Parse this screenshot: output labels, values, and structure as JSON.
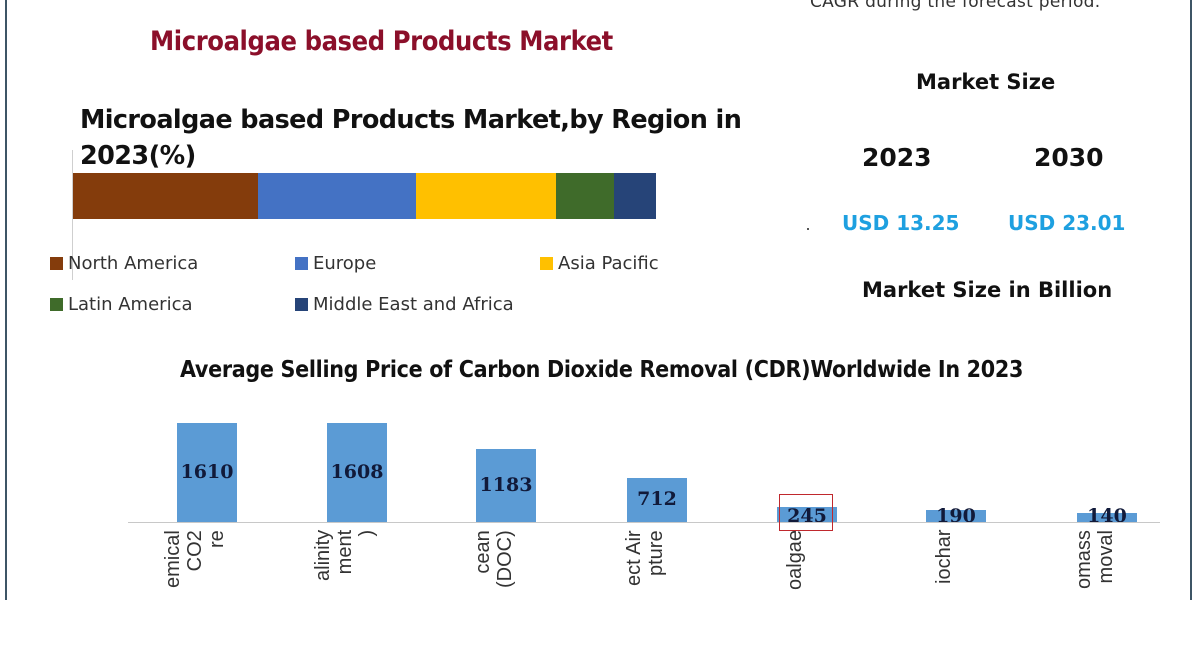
{
  "header": {
    "cagr_note": "CAGR during the forecast period.",
    "title": "Microalgae based Products Market"
  },
  "market_size": {
    "title": "Market Size",
    "years": [
      {
        "year": "2023",
        "value": "USD 13.25"
      },
      {
        "year": "2030",
        "value": "USD 23.01"
      }
    ],
    "unit_label": "Market Size in Billion"
  },
  "colors": {
    "title_red": "#8b0f2a",
    "usd_blue": "#1ea0e0",
    "bar_blue": "#5b9bd5",
    "highlight": "#c0282d",
    "frame": "#3d5566"
  },
  "chart_data": [
    {
      "type": "bar",
      "orientation": "horizontal-stacked-100",
      "title": "Microalgae based Products Market,by Region in 2023(%)",
      "categories": [
        "2023"
      ],
      "series": [
        {
          "name": "North America",
          "color": "#843c0c",
          "values": [
            31.8
          ]
        },
        {
          "name": "Europe",
          "color": "#4472c4",
          "values": [
            27.1
          ]
        },
        {
          "name": "Asia Pacific",
          "color": "#ffc000",
          "values": [
            24.0
          ]
        },
        {
          "name": "Latin America",
          "color": "#3f6b2a",
          "values": [
            9.9
          ]
        },
        {
          "name": "Middle East and Africa",
          "color": "#264478",
          "values": [
            7.2
          ]
        }
      ],
      "xlabel": "",
      "ylabel": "",
      "grid": false,
      "legend_position": "bottom"
    },
    {
      "type": "bar",
      "title": "Average Selling Price of Carbon Dioxide Removal (CDR)Worldwide In 2023",
      "categories": [
        [
          "emical",
          "CO2",
          "re"
        ],
        [
          "alinity",
          "ment",
          ")"
        ],
        [
          "cean",
          "(DOC)"
        ],
        [
          "ect Air",
          "pture"
        ],
        [
          "oalgae"
        ],
        [
          "iochar"
        ],
        [
          "omass",
          "moval"
        ]
      ],
      "values": [
        1610,
        1608,
        1183,
        712,
        245,
        190,
        140
      ],
      "value_labels": [
        "1610",
        "1608",
        "1183",
        "712",
        "245",
        "190",
        "140"
      ],
      "highlighted_index": 4,
      "xlabel": "",
      "ylabel": "",
      "grid": false,
      "legend_position": "none"
    }
  ]
}
